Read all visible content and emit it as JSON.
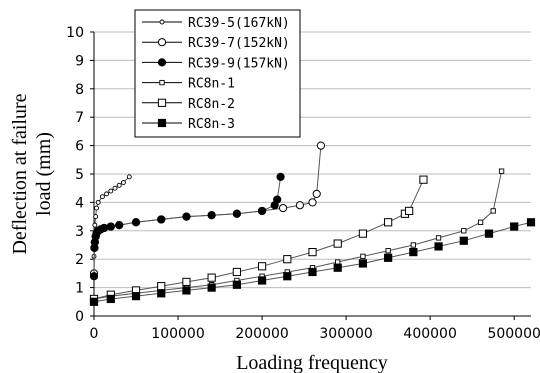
{
  "chart_data": {
    "type": "line",
    "xlabel": "Loading frequency",
    "ylabel_line1": "Deflection at failure",
    "ylabel_line2": "load (mm)",
    "xlim": [
      0,
      520000
    ],
    "ylim": [
      0,
      10
    ],
    "x_ticks": [
      0,
      100000,
      200000,
      300000,
      400000,
      500000
    ],
    "y_ticks": [
      0,
      1,
      2,
      3,
      4,
      5,
      6,
      7,
      8,
      9,
      10
    ],
    "grid": "horizontal",
    "legend_position": "top-left",
    "series": [
      {
        "name": "RC39-5(167kN)",
        "marker": "small-open-circle",
        "x": [
          0,
          1000,
          2000,
          3000,
          5000,
          10000,
          15000,
          20000,
          25000,
          30000,
          35000,
          42000
        ],
        "y": [
          2.1,
          3.2,
          3.5,
          3.8,
          4.0,
          4.2,
          4.3,
          4.4,
          4.5,
          4.6,
          4.7,
          4.9
        ]
      },
      {
        "name": "RC39-7(152kN)",
        "marker": "large-open-circle",
        "x": [
          0,
          500,
          1000,
          2000,
          3000,
          5000,
          8000,
          12000,
          20000,
          30000,
          50000,
          80000,
          110000,
          140000,
          170000,
          200000,
          225000,
          245000,
          260000,
          265000,
          270000
        ],
        "y": [
          1.5,
          2.4,
          2.6,
          2.8,
          2.9,
          3.0,
          3.05,
          3.1,
          3.15,
          3.2,
          3.3,
          3.4,
          3.5,
          3.55,
          3.6,
          3.7,
          3.8,
          3.9,
          4.0,
          4.3,
          6.0
        ]
      },
      {
        "name": "RC39-9(157kN)",
        "marker": "filled-circle",
        "x": [
          0,
          500,
          1000,
          2000,
          3000,
          5000,
          8000,
          12000,
          20000,
          30000,
          50000,
          80000,
          110000,
          140000,
          170000,
          200000,
          215000,
          218000,
          222000
        ],
        "y": [
          1.4,
          2.4,
          2.6,
          2.8,
          2.9,
          3.0,
          3.05,
          3.1,
          3.15,
          3.2,
          3.3,
          3.4,
          3.5,
          3.55,
          3.6,
          3.7,
          3.9,
          4.1,
          4.9
        ]
      },
      {
        "name": "RC8n-1",
        "marker": "small-open-square",
        "x": [
          0,
          20000,
          50000,
          80000,
          110000,
          140000,
          170000,
          200000,
          230000,
          260000,
          290000,
          320000,
          350000,
          380000,
          410000,
          440000,
          460000,
          475000,
          485000
        ],
        "y": [
          0.6,
          0.7,
          0.8,
          0.9,
          1.0,
          1.1,
          1.25,
          1.4,
          1.55,
          1.7,
          1.9,
          2.1,
          2.3,
          2.5,
          2.75,
          3.0,
          3.3,
          3.7,
          5.1
        ]
      },
      {
        "name": "RC8n-2",
        "marker": "large-open-square",
        "x": [
          0,
          20000,
          50000,
          80000,
          110000,
          140000,
          170000,
          200000,
          230000,
          260000,
          290000,
          320000,
          350000,
          370000,
          375000,
          392000
        ],
        "y": [
          0.6,
          0.75,
          0.9,
          1.05,
          1.2,
          1.35,
          1.55,
          1.75,
          2.0,
          2.25,
          2.55,
          2.9,
          3.3,
          3.6,
          3.7,
          4.8
        ]
      },
      {
        "name": "RC8n-3",
        "marker": "filled-square",
        "x": [
          0,
          20000,
          50000,
          80000,
          110000,
          140000,
          170000,
          200000,
          230000,
          260000,
          290000,
          320000,
          350000,
          380000,
          410000,
          440000,
          470000,
          500000,
          520000
        ],
        "y": [
          0.5,
          0.6,
          0.7,
          0.8,
          0.9,
          1.0,
          1.1,
          1.25,
          1.4,
          1.55,
          1.7,
          1.85,
          2.05,
          2.25,
          2.45,
          2.65,
          2.9,
          3.15,
          3.3
        ]
      }
    ]
  }
}
